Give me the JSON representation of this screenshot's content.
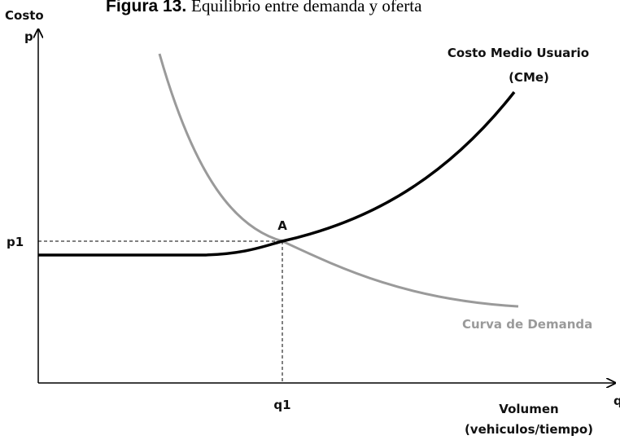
{
  "title": {
    "label": "Figura 13.",
    "text": "Equilibrio entre demanda y oferta"
  },
  "axes": {
    "y_label": "Costo",
    "y_symbol": "p",
    "x_symbol": "q",
    "x_label": [
      "Volumen",
      "(vehiculos/tiempo)"
    ]
  },
  "points": {
    "price": "p1",
    "quantity": "q1",
    "equilibrium": "A"
  },
  "curves": {
    "supply": [
      "Costo Medio Usuario",
      "(CMe)"
    ],
    "demand": "Curva de Demanda"
  }
}
